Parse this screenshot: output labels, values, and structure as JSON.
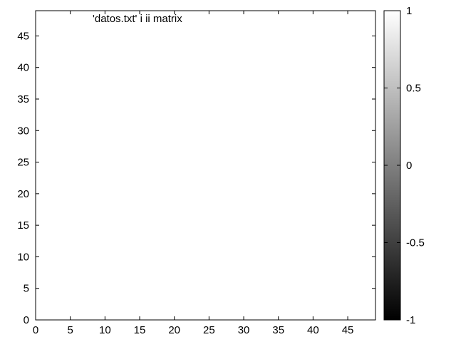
{
  "chart_data": {
    "type": "heatmap",
    "title": "",
    "legend": {
      "entries": [
        "'datos.txt' i ii matrix"
      ],
      "placement": "top-left"
    },
    "xlabel": "",
    "ylabel": "",
    "xlim": [
      0,
      49
    ],
    "ylim": [
      0,
      49
    ],
    "x_ticks": [
      0,
      5,
      10,
      15,
      20,
      25,
      30,
      35,
      40,
      45
    ],
    "y_ticks": [
      0,
      5,
      10,
      15,
      20,
      25,
      30,
      35,
      40,
      45
    ],
    "colorbar": {
      "range": [
        -1,
        1
      ],
      "ticks": [
        1,
        0.5,
        0,
        -0.5,
        -1
      ],
      "palette": "gray",
      "low_color": "#000000",
      "high_color": "#ffffff"
    },
    "grid": false,
    "values": []
  },
  "colors": {
    "axis": "#000000",
    "background": "#ffffff"
  }
}
